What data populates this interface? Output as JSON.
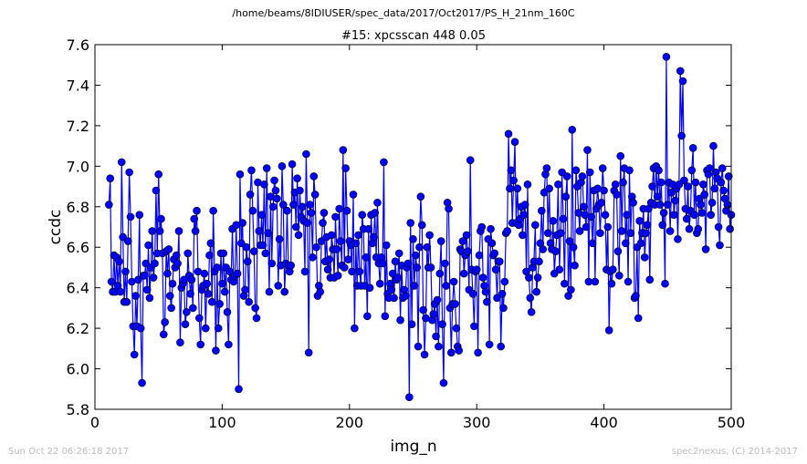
{
  "header": {
    "path": "/home/beams/8IDIUSER/spec_data/2017/Oct2017/PS_H_21nm_160C",
    "scan_title": "#15: xpcsscan 448 0.05"
  },
  "footer": {
    "timestamp": "Sun Oct 22 06:26:18 2017",
    "credit": "spec2nexus, (C) 2014-2017"
  },
  "chart_data": {
    "type": "line",
    "title": "#15: xpcsscan 448 0.05",
    "xlabel": "img_n",
    "ylabel": "ccdc",
    "xlim": [
      0,
      500
    ],
    "ylim": [
      5.8,
      7.6
    ],
    "x_ticks": [
      "0",
      "100",
      "200",
      "300",
      "400",
      "500"
    ],
    "y_ticks": [
      "5.8",
      "6.0",
      "6.2",
      "6.4",
      "6.6",
      "6.8",
      "7.0",
      "7.2",
      "7.4",
      "7.6"
    ],
    "grid": false,
    "marker": "circle",
    "color": "#0000ff",
    "x_start": 11,
    "x_step": 1,
    "values": [
      6.81,
      6.94,
      6.43,
      6.38,
      6.56,
      6.38,
      6.55,
      6.41,
      6.53,
      6.38,
      7.02,
      6.65,
      6.33,
      6.48,
      6.33,
      6.63,
      6.97,
      6.75,
      6.43,
      6.21,
      6.07,
      6.36,
      6.21,
      6.44,
      6.76,
      6.2,
      5.93,
      6.46,
      6.46,
      6.52,
      6.39,
      6.61,
      6.35,
      6.5,
      6.68,
      6.45,
      6.52,
      6.88,
      6.57,
      6.96,
      6.68,
      6.74,
      6.57,
      6.17,
      6.23,
      6.58,
      6.47,
      6.59,
      6.36,
      6.3,
      6.42,
      6.54,
      6.5,
      6.56,
      6.52,
      6.68,
      6.13,
      6.4,
      6.42,
      6.44,
      6.22,
      6.28,
      6.57,
      6.46,
      6.37,
      6.44,
      6.3,
      6.74,
      6.68,
      6.78,
      6.48,
      6.25,
      6.12,
      6.39,
      6.41,
      6.47,
      6.2,
      6.42,
      6.37,
      6.56,
      6.62,
      6.33,
      6.78,
      6.48,
      6.09,
      6.5,
      6.2,
      6.32,
      6.57,
      6.42,
      6.57,
      6.38,
      6.5,
      6.28,
      6.12,
      6.48,
      6.44,
      6.69,
      6.43,
      6.46,
      6.71,
      6.47,
      5.9,
      6.96,
      6.62,
      6.72,
      6.36,
      6.39,
      6.6,
      6.53,
      6.33,
      6.86,
      6.98,
      6.78,
      6.58,
      6.3,
      6.25,
      6.92,
      6.68,
      6.61,
      6.76,
      6.61,
      6.91,
      6.57,
      6.99,
      6.67,
      6.38,
      6.85,
      6.52,
      6.8,
      6.93,
      6.88,
      6.84,
      6.41,
      6.64,
      6.51,
      7.0,
      6.81,
      6.38,
      6.52,
      6.78,
      6.51,
      6.48,
      6.51,
      7.01,
      6.81,
      6.87,
      6.7,
      6.94,
      6.66,
      6.88,
      6.75,
      6.8,
      6.73,
      6.48,
      7.06,
      6.72,
      6.08,
      6.81,
      6.77,
      6.55,
      6.95,
      6.86,
      6.6,
      6.36,
      6.41,
      6.38,
      6.63,
      6.72,
      6.77,
      6.53,
      6.65,
      6.49,
      6.54,
      6.45,
      6.66,
      6.59,
      6.45,
      6.75,
      6.59,
      6.46,
      6.79,
      6.63,
      6.51,
      7.08,
      6.5,
      6.99,
      6.78,
      6.54,
      6.63,
      6.61,
      6.48,
      6.86,
      6.2,
      6.62,
      6.41,
      6.66,
      6.48,
      6.41,
      6.76,
      6.69,
      6.41,
      6.55,
      6.26,
      6.69,
      6.4,
      6.76,
      6.62,
      6.65,
      6.77,
      6.55,
      6.82,
      6.52,
      6.42,
      6.55,
      6.52,
      7.02,
      6.26,
      6.61,
      6.37,
      6.35,
      6.42,
      6.39,
      6.47,
      6.35,
      6.53,
      6.44,
      6.45,
      6.57,
      6.24,
      6.51,
      6.35,
      6.39,
      6.36,
      6.5,
      6.52,
      5.86,
      6.72,
      6.22,
      6.64,
      6.41,
      6.56,
      6.5,
      6.11,
      6.6,
      6.85,
      6.71,
      6.29,
      6.07,
      6.25,
      6.6,
      6.5,
      6.66,
      6.5,
      6.24,
      6.27,
      6.32,
      6.16,
      6.34,
      6.11,
      6.47,
      6.63,
      6.22,
      5.93,
      6.52,
      6.41,
      6.82,
      6.79,
      6.3,
      6.08,
      6.32,
      6.43,
      6.32,
      6.2,
      6.11,
      6.09,
      6.59,
      6.58,
      6.63,
      6.47,
      6.56,
      6.66,
      6.58,
      6.39,
      7.03,
      6.49,
      6.37,
      6.21,
      6.48,
      6.49,
      6.08,
      6.56,
      6.68,
      6.7,
      6.45,
      6.41,
      6.38,
      6.33,
      6.64,
      6.12,
      6.69,
      6.62,
      6.56,
      6.57,
      6.49,
      6.35,
      6.53,
      6.53,
      6.11,
      6.37,
      6.3,
      6.43,
      6.67,
      6.68,
      7.16,
      6.89,
      6.98,
      6.72,
      6.93,
      7.12,
      6.72,
      6.89,
      6.71,
      6.74,
      6.8,
      6.66,
      6.76,
      6.81,
      6.48,
      6.91,
      6.45,
      6.35,
      6.28,
      6.5,
      6.53,
      6.71,
      6.38,
      6.45,
      6.53,
      6.62,
      6.78,
      6.59,
      6.87,
      6.96,
      6.99,
      6.67,
      6.89,
      6.62,
      6.59,
      6.73,
      6.47,
      6.58,
      6.66,
      6.91,
      6.49,
      6.67,
      6.97,
      6.74,
      6.42,
      6.85,
      6.95,
      6.36,
      6.63,
      6.39,
      7.18,
      6.6,
      6.51,
      6.98,
      6.9,
      6.77,
      6.68,
      6.92,
      6.95,
      6.8,
      6.76,
      6.7,
      7.08,
      6.43,
      6.97,
      6.75,
      6.62,
      6.88,
      6.43,
      6.79,
      6.89,
      6.81,
      6.67,
      6.82,
      6.99,
      6.88,
      6.76,
      6.49,
      6.7,
      6.19,
      6.48,
      6.42,
      6.49,
      6.88,
      6.91,
      6.86,
      6.58,
      6.46,
      7.05,
      6.68,
      6.92,
      6.99,
      6.62,
      6.76,
      6.43,
      6.98,
      6.67,
      6.85,
      6.82,
      6.35,
      6.36,
      6.6,
      6.25,
      6.73,
      6.62,
      6.67,
      6.79,
      6.55,
      6.67,
      6.71,
      6.79,
      6.44,
      6.82,
      6.9,
      6.99,
      6.81,
      7.0,
      6.85,
      6.98,
      6.81,
      6.92,
      6.71,
      6.77,
      6.42,
      7.54,
      6.81,
      6.92,
      6.68,
      6.87,
      6.91,
      6.76,
      6.83,
      6.89,
      6.64,
      6.91,
      7.47,
      7.15,
      7.42,
      6.93,
      6.79,
      6.74,
      6.9,
      6.69,
      6.78,
      6.98,
      7.09,
      6.76,
      6.92,
      6.67,
      6.69,
      6.84,
      6.81,
      6.77,
      6.91,
      6.86,
      6.59,
      6.98,
      6.96,
      6.99,
      6.76,
      6.82,
      7.1,
      6.89,
      6.97,
      6.94,
      6.7,
      6.61,
      6.92,
      6.99,
      6.88,
      6.84,
      6.78,
      6.81,
      6.95,
      6.69,
      6.76
    ]
  }
}
